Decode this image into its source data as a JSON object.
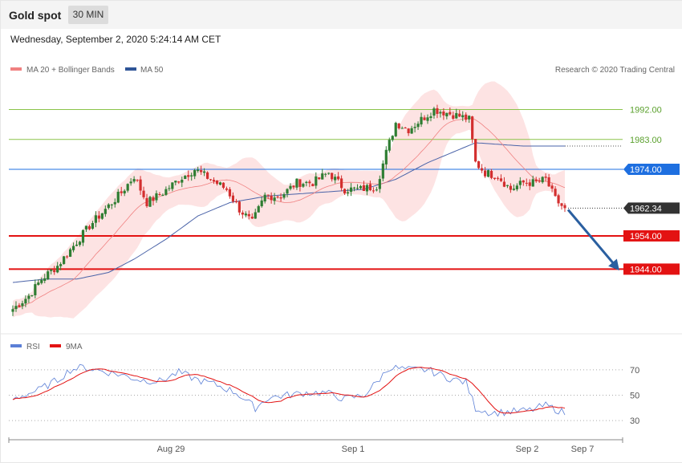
{
  "header": {
    "title": "Gold spot",
    "timeframe": "30 MIN"
  },
  "datetime": "Wednesday, September 2, 2020 5:24:14 AM CET",
  "legend": {
    "ma20": "MA 20 + Bollinger Bands",
    "ma50": "MA 50",
    "copyright": "Research © 2020 Trading Central",
    "rsi": "RSI",
    "rsi_ma": "9MA"
  },
  "colors": {
    "bull": "#2e7d32",
    "bear": "#d32f2f",
    "band": "#fde3e3",
    "ma20": "#f08080",
    "ma50": "#4a63a8",
    "resistance": "#8bc34a",
    "pivot": "#1e6fe0",
    "support": "#e31212",
    "rsi": "#5b7fd6",
    "rsi_ma": "#e31212",
    "current": "#333333",
    "arrow": "#2a5fa0"
  },
  "chart_data": [
    {
      "type": "candlestick",
      "ylim": [
        1926,
        2002
      ],
      "x_ticks": [
        "Aug 29",
        "Sep 1",
        "Sep 2",
        "Sep 7"
      ],
      "levels": [
        {
          "label": "1992.00",
          "value": 1992.0,
          "kind": "resistance"
        },
        {
          "label": "1983.00",
          "value": 1983.0,
          "kind": "resistance"
        },
        {
          "label": "1974.00",
          "value": 1974.0,
          "kind": "pivot"
        },
        {
          "label": "1954.00",
          "value": 1954.0,
          "kind": "support"
        },
        {
          "label": "1944.00",
          "value": 1944.0,
          "kind": "support"
        }
      ],
      "current": {
        "label": "1962.34",
        "value": 1962.34
      },
      "forecast_arrow_target": 1944.0,
      "anchors": [
        {
          "i": 0,
          "v": 1932
        },
        {
          "i": 5,
          "v": 1936
        },
        {
          "i": 9,
          "v": 1941
        },
        {
          "i": 14,
          "v": 1945
        },
        {
          "i": 19,
          "v": 1951
        },
        {
          "i": 24,
          "v": 1957
        },
        {
          "i": 29,
          "v": 1962
        },
        {
          "i": 34,
          "v": 1967
        },
        {
          "i": 38,
          "v": 1972
        },
        {
          "i": 42,
          "v": 1964
        },
        {
          "i": 47,
          "v": 1967
        },
        {
          "i": 52,
          "v": 1971
        },
        {
          "i": 57,
          "v": 1974
        },
        {
          "i": 62,
          "v": 1971
        },
        {
          "i": 67,
          "v": 1968
        },
        {
          "i": 71,
          "v": 1962
        },
        {
          "i": 75,
          "v": 1958
        },
        {
          "i": 79,
          "v": 1966
        },
        {
          "i": 84,
          "v": 1966
        },
        {
          "i": 89,
          "v": 1970
        },
        {
          "i": 94,
          "v": 1970
        },
        {
          "i": 99,
          "v": 1973
        },
        {
          "i": 104,
          "v": 1968
        },
        {
          "i": 109,
          "v": 1968
        },
        {
          "i": 114,
          "v": 1969
        },
        {
          "i": 117,
          "v": 1979
        },
        {
          "i": 120,
          "v": 1988
        },
        {
          "i": 124,
          "v": 1986
        },
        {
          "i": 128,
          "v": 1989
        },
        {
          "i": 132,
          "v": 1992
        },
        {
          "i": 136,
          "v": 1991
        },
        {
          "i": 140,
          "v": 1990
        },
        {
          "i": 143,
          "v": 1989
        },
        {
          "i": 145,
          "v": 1976
        },
        {
          "i": 148,
          "v": 1973
        },
        {
          "i": 152,
          "v": 1972
        },
        {
          "i": 156,
          "v": 1968
        },
        {
          "i": 160,
          "v": 1970
        },
        {
          "i": 164,
          "v": 1970
        },
        {
          "i": 167,
          "v": 1971
        },
        {
          "i": 170,
          "v": 1965
        },
        {
          "i": 173,
          "v": 1962
        }
      ],
      "ma50_anchors": [
        {
          "i": 0,
          "v": 1940
        },
        {
          "i": 10,
          "v": 1941
        },
        {
          "i": 20,
          "v": 1941
        },
        {
          "i": 30,
          "v": 1943
        },
        {
          "i": 38,
          "v": 1947
        },
        {
          "i": 48,
          "v": 1953
        },
        {
          "i": 58,
          "v": 1960
        },
        {
          "i": 68,
          "v": 1964
        },
        {
          "i": 80,
          "v": 1966
        },
        {
          "i": 95,
          "v": 1967
        },
        {
          "i": 110,
          "v": 1968
        },
        {
          "i": 120,
          "v": 1971
        },
        {
          "i": 130,
          "v": 1976
        },
        {
          "i": 140,
          "v": 1980
        },
        {
          "i": 145,
          "v": 1982
        },
        {
          "i": 160,
          "v": 1981
        },
        {
          "i": 173,
          "v": 1981
        }
      ]
    },
    {
      "type": "line",
      "name": "RSI",
      "ylim": [
        20,
        80
      ],
      "y_ticks": [
        30,
        50,
        70
      ],
      "anchors": [
        {
          "i": 0,
          "v": 47
        },
        {
          "i": 8,
          "v": 54
        },
        {
          "i": 14,
          "v": 62
        },
        {
          "i": 18,
          "v": 70
        },
        {
          "i": 22,
          "v": 72
        },
        {
          "i": 26,
          "v": 70
        },
        {
          "i": 30,
          "v": 68
        },
        {
          "i": 34,
          "v": 66
        },
        {
          "i": 40,
          "v": 62
        },
        {
          "i": 46,
          "v": 61
        },
        {
          "i": 52,
          "v": 68
        },
        {
          "i": 58,
          "v": 62
        },
        {
          "i": 64,
          "v": 58
        },
        {
          "i": 70,
          "v": 52
        },
        {
          "i": 76,
          "v": 40
        },
        {
          "i": 80,
          "v": 48
        },
        {
          "i": 86,
          "v": 50
        },
        {
          "i": 92,
          "v": 52
        },
        {
          "i": 98,
          "v": 52
        },
        {
          "i": 104,
          "v": 47
        },
        {
          "i": 110,
          "v": 50
        },
        {
          "i": 114,
          "v": 60
        },
        {
          "i": 118,
          "v": 72
        },
        {
          "i": 124,
          "v": 70
        },
        {
          "i": 130,
          "v": 70
        },
        {
          "i": 136,
          "v": 64
        },
        {
          "i": 142,
          "v": 60
        },
        {
          "i": 145,
          "v": 40
        },
        {
          "i": 150,
          "v": 36
        },
        {
          "i": 156,
          "v": 37
        },
        {
          "i": 162,
          "v": 38
        },
        {
          "i": 167,
          "v": 42
        },
        {
          "i": 173,
          "v": 36
        }
      ]
    }
  ]
}
